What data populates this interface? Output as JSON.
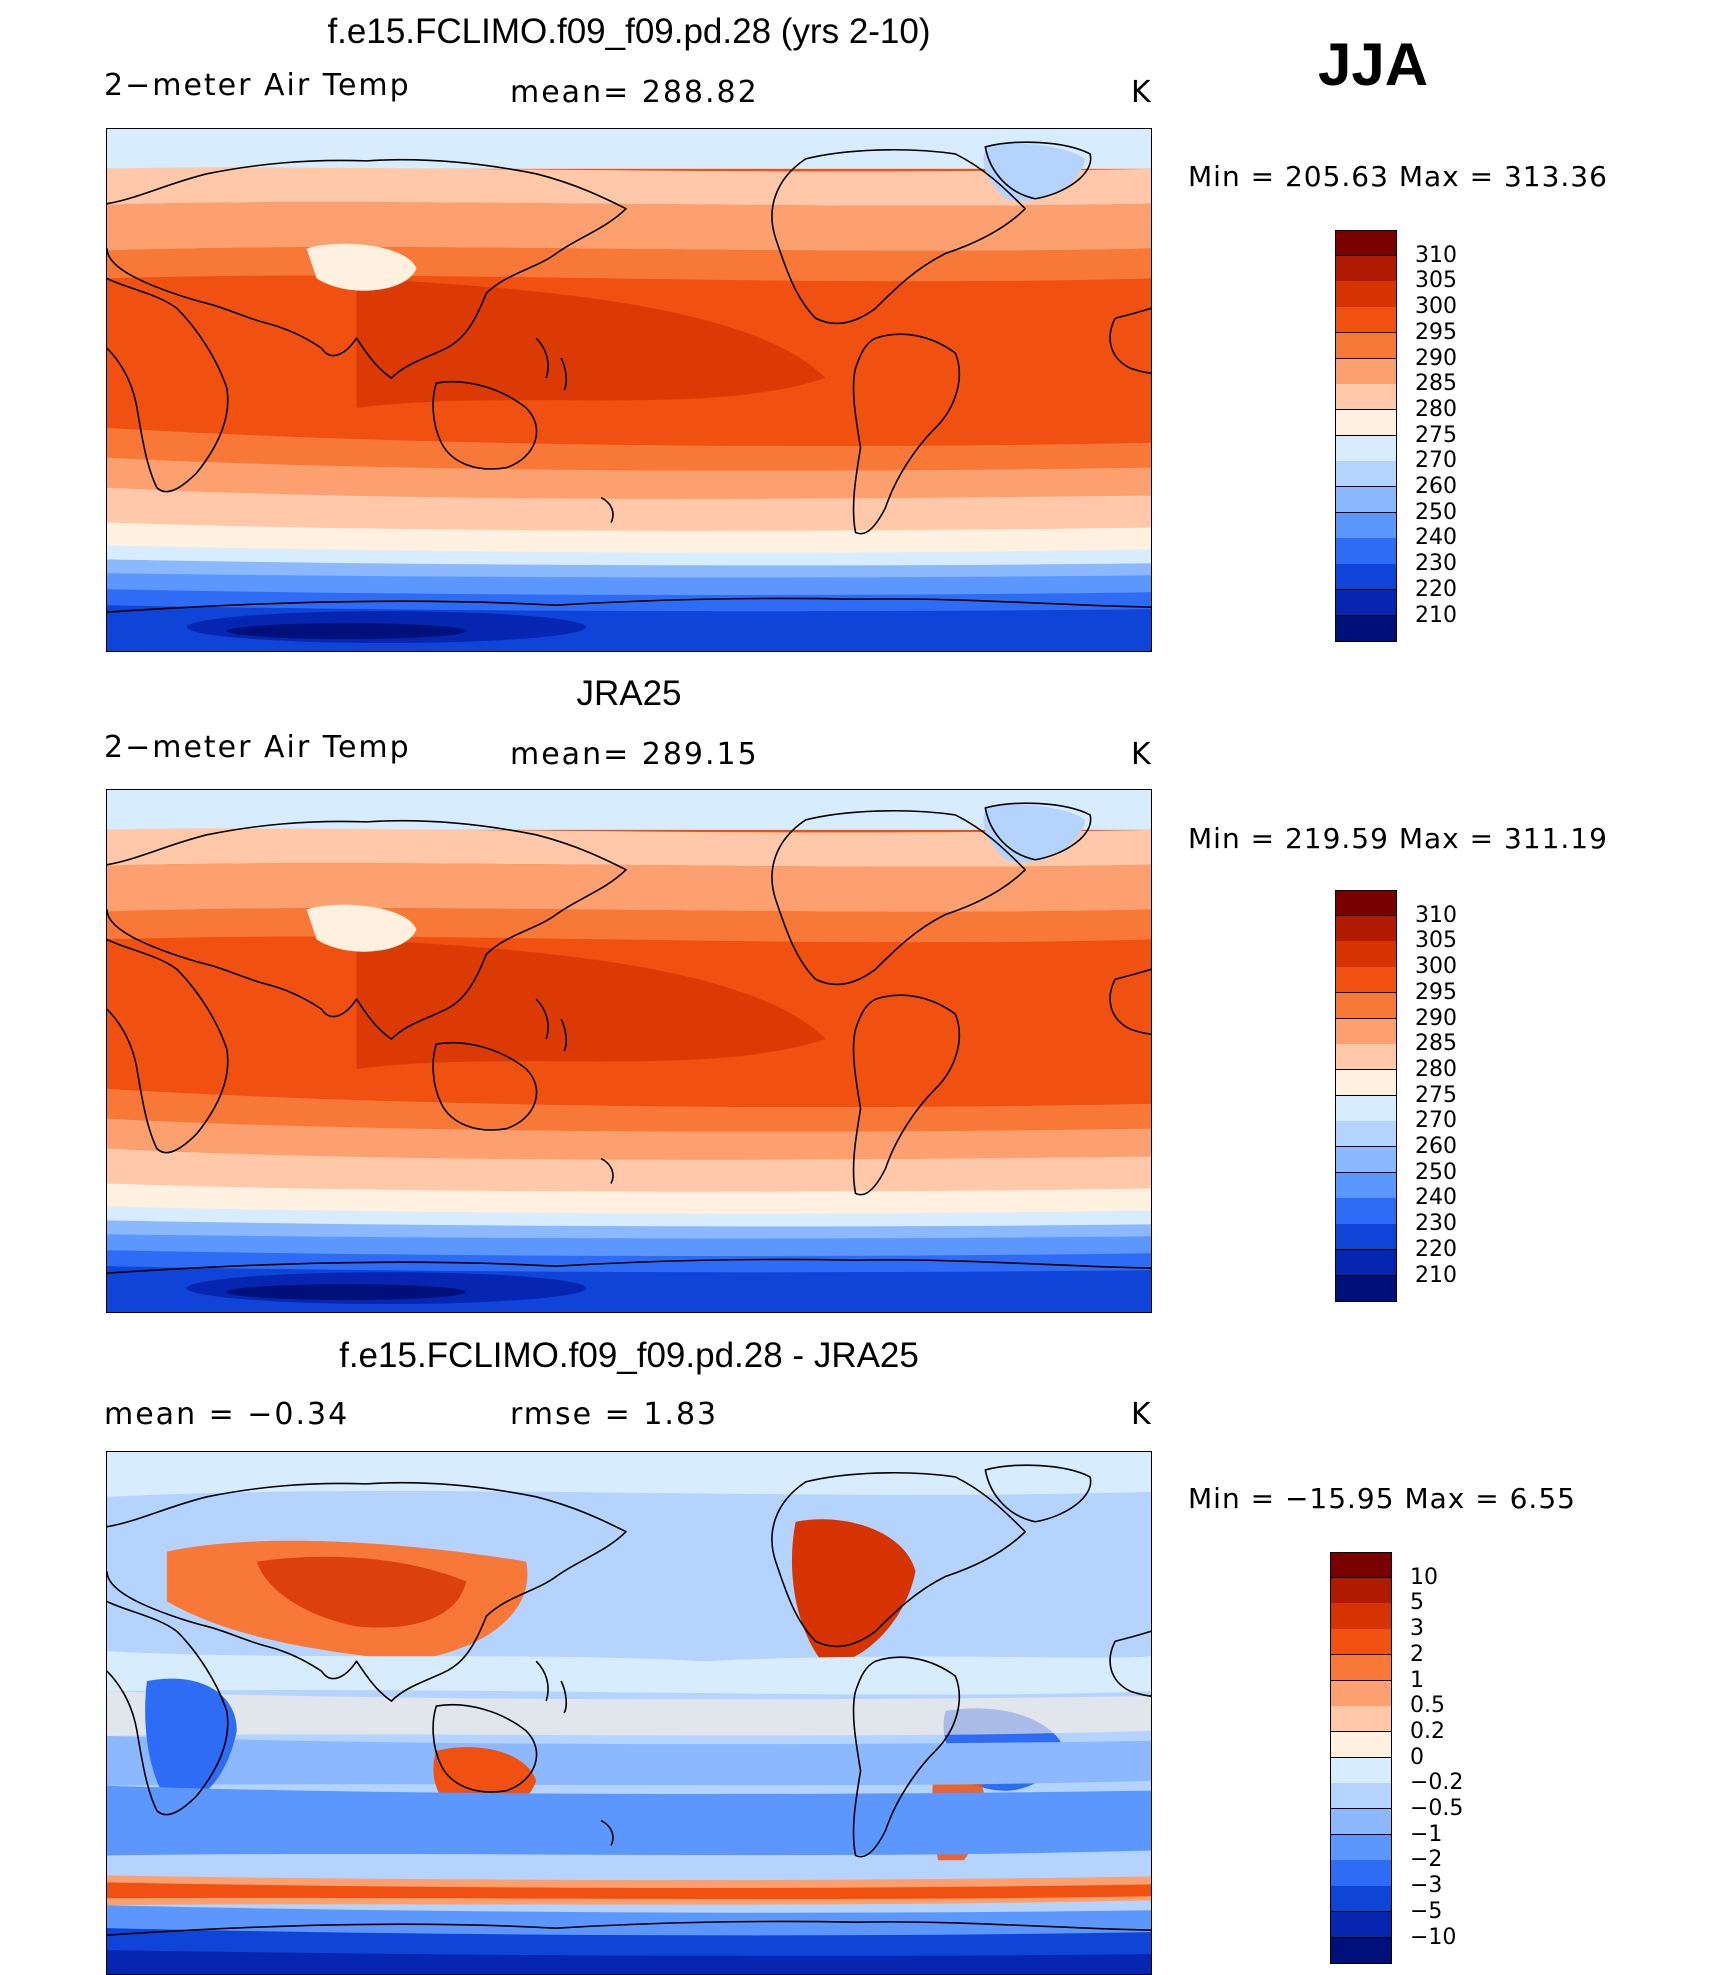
{
  "season": "JJA",
  "panels": [
    {
      "id": "model",
      "title": "f.e15.FCLIMO.f09_f09.pd.28 (yrs 2-10)",
      "left_label": "2−meter Air Temp",
      "mid_label": "mean=  288.82",
      "units": "K",
      "minmax": "Min  =  205.63  Max  =  313.36",
      "kind": "abs"
    },
    {
      "id": "obs",
      "title": "JRA25",
      "left_label": "2−meter Air Temp",
      "mid_label": "mean=  289.15",
      "units": "K",
      "minmax": "Min  =  219.59  Max  =  311.19",
      "kind": "abs"
    },
    {
      "id": "diff",
      "title": "f.e15.FCLIMO.f09_f09.pd.28 - JRA25",
      "left_label": "mean  =     −0.34",
      "mid_label": "rmse  =      1.83",
      "units": "K",
      "minmax": "Min  =  −15.95  Max  =       6.55",
      "kind": "diff"
    }
  ],
  "colorbars": {
    "abs": {
      "labels": [
        "310",
        "305",
        "300",
        "295",
        "290",
        "285",
        "280",
        "275",
        "270",
        "260",
        "250",
        "240",
        "230",
        "220",
        "210"
      ],
      "colors": [
        "#7a0000",
        "#b01a00",
        "#d63300",
        "#f05010",
        "#f87838",
        "#fca070",
        "#ffc8a8",
        "#fff0e0",
        "#d8ecff",
        "#b4d4ff",
        "#8cb8ff",
        "#5c96ff",
        "#2e6cf6",
        "#0e44d8",
        "#0626b2",
        "#00107a"
      ]
    },
    "diff": {
      "labels": [
        "10",
        "5",
        "3",
        "2",
        "1",
        "0.5",
        "0.2",
        "0",
        "−0.2",
        "−0.5",
        "−1",
        "−2",
        "−3",
        "−5",
        "−10"
      ],
      "colors": [
        "#7a0000",
        "#b01a00",
        "#d63300",
        "#f05010",
        "#f87838",
        "#fca070",
        "#ffc8a8",
        "#fff0e0",
        "#d8ecff",
        "#b4d4ff",
        "#8cb8ff",
        "#5c96ff",
        "#2e6cf6",
        "#0e44d8",
        "#0626b2",
        "#00107a"
      ]
    }
  }
}
